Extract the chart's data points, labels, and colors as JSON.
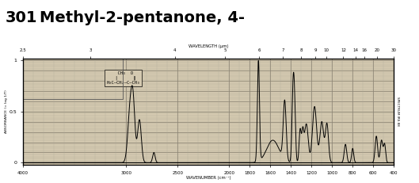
{
  "title_number": "301",
  "title_name": "Methyl-2-pentanone, 4-",
  "title_fontsize": 14,
  "bg_color": "#d4c9b0",
  "spectrum_color": "#000000",
  "grid_color_major": "#888070",
  "grid_color_minor": "#b0a898",
  "top_axis_label": "WAVELENGTH (µm)",
  "bottom_axis_label": "WAVENUMBER (cm⁻¹)",
  "right_axis_label": "SPECTRUM IRS 88",
  "ylabel": "ABSORBANCE (= log 1/T)",
  "wavelength_labels": [
    2.5,
    3,
    4,
    5,
    6,
    7,
    8,
    9,
    10,
    12,
    14,
    16,
    20,
    30
  ],
  "bottom_ticks": [
    4000,
    3000,
    2500,
    2000,
    1800,
    1600,
    1400,
    1200,
    1000,
    800,
    600,
    400
  ],
  "title_bg": "#ffffff",
  "fig_bg": "#ffffff"
}
